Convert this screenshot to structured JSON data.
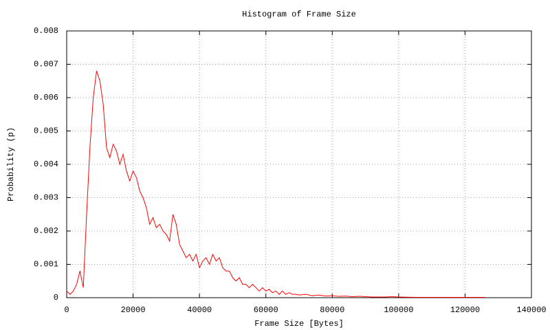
{
  "chart_data": {
    "type": "line",
    "title": "Histogram of Frame Size",
    "xlabel": "Frame Size [Bytes]",
    "ylabel": "Probability (p)",
    "x": [
      0,
      1000,
      2000,
      3000,
      4000,
      5000,
      6000,
      7000,
      8000,
      9000,
      10000,
      11000,
      12000,
      13000,
      14000,
      15000,
      16000,
      17000,
      18000,
      19000,
      20000,
      21000,
      22000,
      23000,
      24000,
      25000,
      26000,
      27000,
      28000,
      29000,
      30000,
      31000,
      32000,
      33000,
      34000,
      35000,
      36000,
      37000,
      38000,
      39000,
      40000,
      41000,
      42000,
      43000,
      44000,
      45000,
      46000,
      47000,
      48000,
      49000,
      50000,
      51000,
      52000,
      53000,
      54000,
      55000,
      56000,
      57000,
      58000,
      59000,
      60000,
      61000,
      62000,
      63000,
      64000,
      65000,
      66000,
      67000,
      68000,
      69000,
      70000,
      72000,
      74000,
      76000,
      78000,
      80000,
      82000,
      84000,
      86000,
      88000,
      90000,
      92000,
      94000,
      96000,
      98000,
      100000,
      105000,
      110000,
      115000,
      120000,
      126000
    ],
    "series": [
      {
        "name": "Frame Size",
        "color": "#ff0000",
        "values": [
          0.0002,
          0.0001,
          0.0002,
          0.0004,
          0.0008,
          0.0003,
          0.0025,
          0.0045,
          0.006,
          0.0068,
          0.0065,
          0.0058,
          0.0045,
          0.0042,
          0.0046,
          0.0044,
          0.004,
          0.0043,
          0.0038,
          0.0035,
          0.0038,
          0.0036,
          0.0032,
          0.003,
          0.0027,
          0.0022,
          0.0024,
          0.0021,
          0.0022,
          0.002,
          0.0019,
          0.0017,
          0.0025,
          0.0022,
          0.0016,
          0.0014,
          0.0012,
          0.0013,
          0.0011,
          0.0013,
          0.0009,
          0.0011,
          0.0012,
          0.001,
          0.0013,
          0.0011,
          0.0012,
          0.0009,
          0.0008,
          0.0008,
          0.0006,
          0.0005,
          0.0006,
          0.0004,
          0.0004,
          0.0003,
          0.0004,
          0.0003,
          0.0002,
          0.0003,
          0.0002,
          0.00025,
          0.00015,
          0.0002,
          0.0001,
          0.0002,
          0.0001,
          0.00015,
          0.0001,
          0.0001,
          8e-05,
          0.0001,
          6e-05,
          8e-05,
          5e-05,
          6e-05,
          4e-05,
          5e-05,
          3e-05,
          4e-05,
          3e-05,
          2e-05,
          2e-05,
          2e-05,
          3e-05,
          2e-05,
          1e-05,
          1e-05,
          1e-05,
          1e-05,
          1e-05
        ]
      }
    ],
    "xlim": [
      0,
      140000
    ],
    "xticks": [
      0,
      20000,
      40000,
      60000,
      80000,
      100000,
      120000,
      140000
    ],
    "ylim": [
      0,
      0.008
    ],
    "yticks": [
      0,
      0.001,
      0.002,
      0.003,
      0.004,
      0.005,
      0.006,
      0.007,
      0.008
    ],
    "grid": true
  }
}
